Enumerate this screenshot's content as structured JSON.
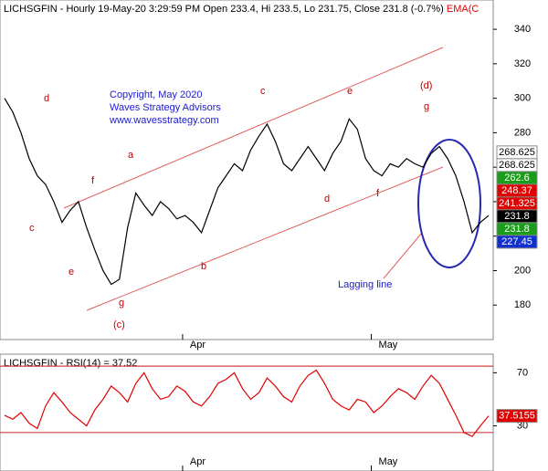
{
  "chart_data": [
    {
      "type": "line",
      "title": "LICHSGFIN - Hourly 19-May-20 3:29:59 PM Open 233.4, Hi 233.5, Lo 231.75, Close 231.8 (-0.7%)",
      "title_suffix": "EMA(C",
      "color": "#000000",
      "ylim": [
        160,
        357
      ],
      "yticks": [
        180,
        200,
        220,
        240,
        260,
        280,
        300,
        320,
        340
      ],
      "xlim": [
        0,
        60
      ],
      "xticks": [
        {
          "value": 21.7,
          "label": "Apr"
        },
        {
          "value": 44.7,
          "label": "May"
        }
      ],
      "values": [
        300,
        292,
        280,
        265,
        255,
        250,
        240,
        228,
        235,
        240,
        225,
        212,
        200,
        192,
        195,
        225,
        245,
        238,
        232,
        240,
        236,
        230,
        232,
        228,
        222,
        235,
        248,
        255,
        262,
        258,
        270,
        278,
        285,
        275,
        262,
        258,
        265,
        272,
        265,
        258,
        268,
        275,
        288,
        282,
        265,
        258,
        255,
        262,
        260,
        265,
        262,
        260,
        268,
        272,
        265,
        255,
        240,
        222,
        228,
        232
      ],
      "price_tags": [
        {
          "value": 268.625,
          "color": "#ffffff",
          "text_color": "#000000"
        },
        {
          "value": 268.625,
          "color": "#ffffff",
          "text_color": "#000000"
        },
        {
          "value": 262.6,
          "color": "#1a9e1a",
          "text_color": "#ffffff"
        },
        {
          "value": 248.37,
          "color": "#e00000",
          "text_color": "#ffffff"
        },
        {
          "value": 241.325,
          "color": "#e00000",
          "text_color": "#ffffff"
        },
        {
          "value": 231.8,
          "color": "#000000",
          "text_color": "#ffffff"
        },
        {
          "value": 231.8,
          "color": "#1a9e1a",
          "text_color": "#ffffff"
        },
        {
          "value": 227.45,
          "color": "#1030d0",
          "text_color": "#ffffff"
        }
      ],
      "annotations": [
        "Copyright, May 2020",
        "Waves Strategy Advisors",
        "www.wavesstrategy.com",
        "a",
        "b",
        "c",
        "d",
        "e",
        "f",
        "g",
        "(c)",
        "(d)",
        "c",
        "d",
        "e",
        "f",
        "g",
        "Lagging line"
      ]
    },
    {
      "type": "line",
      "title": "LICHSGFIN - RSI(14) = 37.52",
      "color": "#e00000",
      "ylim": [
        -4,
        84
      ],
      "yticks": [
        30,
        70
      ],
      "levels": [
        25,
        75
      ],
      "xlim": [
        0,
        60
      ],
      "xticks": [
        {
          "value": 21.7,
          "label": "Apr"
        },
        {
          "value": 44.7,
          "label": "May"
        }
      ],
      "values": [
        38,
        35,
        40,
        32,
        28,
        45,
        55,
        48,
        40,
        35,
        30,
        42,
        50,
        60,
        55,
        48,
        62,
        70,
        58,
        50,
        52,
        60,
        56,
        48,
        45,
        52,
        62,
        65,
        70,
        58,
        50,
        55,
        66,
        60,
        52,
        48,
        60,
        68,
        72,
        62,
        50,
        45,
        42,
        50,
        48,
        40,
        45,
        52,
        58,
        55,
        50,
        60,
        68,
        62,
        50,
        38,
        25,
        22,
        30,
        37.52
      ],
      "price_tags": [
        {
          "value": 37.5155,
          "color": "#e00000",
          "text_color": "#ffffff"
        }
      ]
    }
  ]
}
